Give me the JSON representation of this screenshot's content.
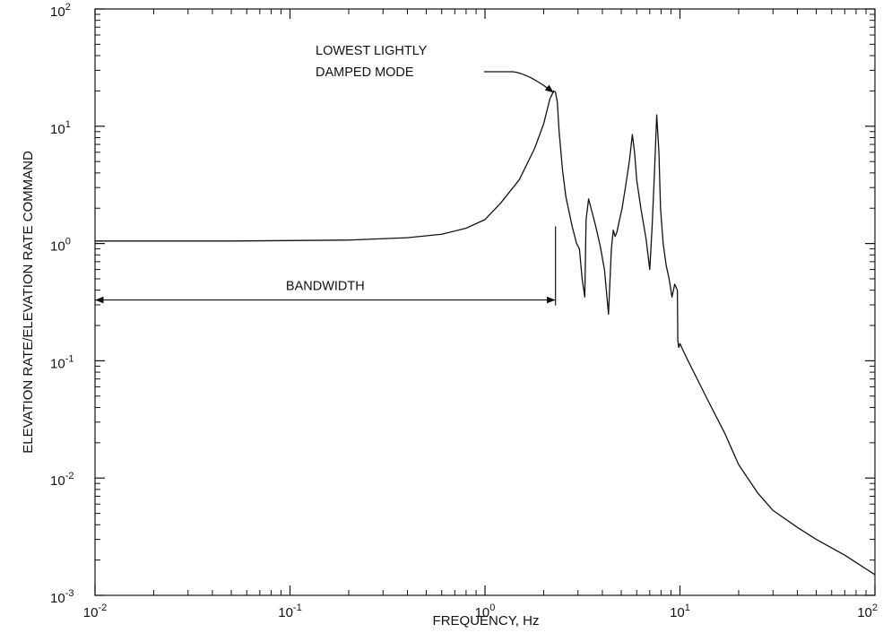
{
  "chart_data": {
    "type": "line",
    "xlabel": "FREQUENCY, Hz",
    "ylabel": "ELEVATION RATE/ELEVATION RATE COMMAND",
    "x_scale": "log",
    "y_scale": "log",
    "xlim": [
      0.01,
      100
    ],
    "ylim": [
      0.001,
      100
    ],
    "grid": false,
    "x_ticks": [
      {
        "value": 0.01,
        "base": "10",
        "exp": "-2"
      },
      {
        "value": 0.1,
        "base": "10",
        "exp": "-1"
      },
      {
        "value": 1,
        "base": "10",
        "exp": "0"
      },
      {
        "value": 10,
        "base": "10",
        "exp": "1"
      },
      {
        "value": 100,
        "base": "10",
        "exp": "2"
      }
    ],
    "y_ticks": [
      {
        "value": 0.001,
        "base": "10",
        "exp": "-3"
      },
      {
        "value": 0.01,
        "base": "10",
        "exp": "-2"
      },
      {
        "value": 0.1,
        "base": "10",
        "exp": "-1"
      },
      {
        "value": 1,
        "base": "10",
        "exp": "0"
      },
      {
        "value": 10,
        "base": "10",
        "exp": "1"
      },
      {
        "value": 100,
        "base": "10",
        "exp": "2"
      }
    ],
    "series": [
      {
        "x": [
          0.01,
          0.05,
          0.1,
          0.2,
          0.4,
          0.6,
          0.8,
          1.0,
          1.2,
          1.5,
          1.8,
          2.0,
          2.15,
          2.25,
          2.3,
          2.35,
          2.4,
          2.5,
          2.6,
          2.8,
          2.95,
          3.05,
          3.15,
          3.25,
          3.3,
          3.4,
          3.5,
          3.7,
          3.9,
          4.1,
          4.3,
          4.45,
          4.55,
          4.65,
          4.75,
          4.9,
          5.05,
          5.25,
          5.5,
          5.7,
          5.85,
          6.0,
          6.3,
          6.7,
          7.0,
          7.2,
          7.4,
          7.6,
          7.8,
          7.95,
          8.2,
          8.5,
          8.8,
          9.1,
          9.4,
          9.7,
          9.75,
          9.85,
          10.0,
          10.2,
          11,
          12,
          14,
          17,
          20,
          25,
          30,
          40,
          50,
          70,
          100
        ],
        "y": [
          1.05,
          1.05,
          1.06,
          1.07,
          1.12,
          1.2,
          1.35,
          1.6,
          2.2,
          3.5,
          6.5,
          10.5,
          17,
          20,
          19.5,
          16,
          9.0,
          4.2,
          2.5,
          1.4,
          1.0,
          0.9,
          0.5,
          0.35,
          1.6,
          2.4,
          2.0,
          1.4,
          0.95,
          0.6,
          0.25,
          0.9,
          1.3,
          1.15,
          1.25,
          1.6,
          2.0,
          3.0,
          5.0,
          8.5,
          6.0,
          3.5,
          2.0,
          1.1,
          0.6,
          1.4,
          4.0,
          12.5,
          6.0,
          2.0,
          1.0,
          0.65,
          0.5,
          0.35,
          0.45,
          0.4,
          0.15,
          0.13,
          0.14,
          0.13,
          0.1,
          0.075,
          0.045,
          0.024,
          0.013,
          0.0075,
          0.0053,
          0.0038,
          0.003,
          0.0022,
          0.0015
        ]
      }
    ],
    "annotations": [
      {
        "lines": [
          "LOWEST LIGHTLY",
          "DAMPED MODE"
        ],
        "target_x": 2.3,
        "target_y": 20
      },
      {
        "text": "BANDWIDTH",
        "x_start": 0.01,
        "x_end": 2.3,
        "y": 0.33
      }
    ]
  }
}
